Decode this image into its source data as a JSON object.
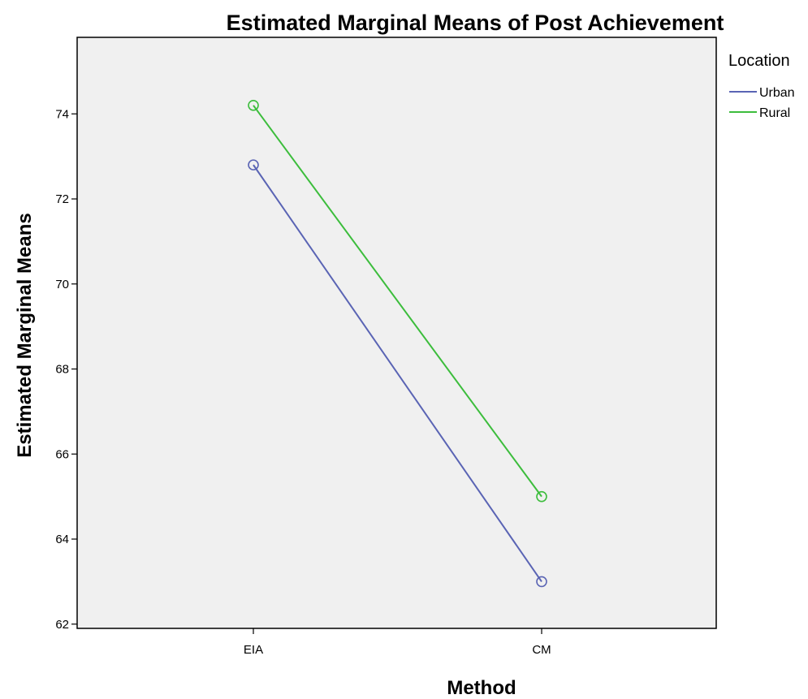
{
  "chart_data": {
    "type": "line",
    "title": "Estimated Marginal Means of Post Achievement",
    "xlabel": "Method",
    "ylabel": "Estimated Marginal Means",
    "categories": [
      "EIA",
      "CM"
    ],
    "yticks": [
      "62",
      "64",
      "66",
      "68",
      "70",
      "72",
      "74"
    ],
    "ylim": [
      61.9,
      75.8
    ],
    "grid": false,
    "legend": {
      "title": "Location",
      "placement": "right"
    },
    "series": [
      {
        "name": "Urban",
        "values": [
          72.8,
          63.0
        ],
        "color": "#5a64b4"
      },
      {
        "name": "Rural",
        "values": [
          74.2,
          65.0
        ],
        "color": "#3cbd3c"
      }
    ],
    "marker": "open-circle",
    "plot_background": "#f0f0f0"
  }
}
